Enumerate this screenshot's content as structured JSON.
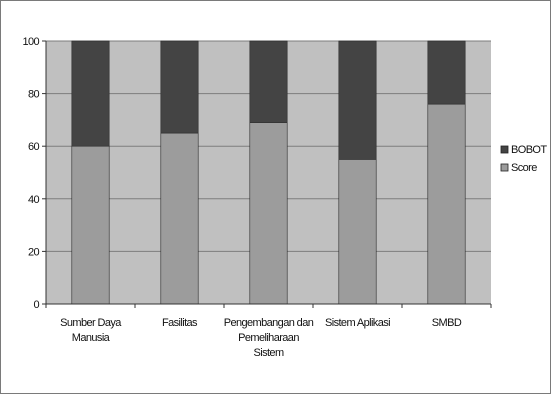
{
  "chart_data": {
    "type": "bar",
    "stacked": true,
    "categories": [
      [
        "Sumber Daya",
        "Manusia"
      ],
      [
        "Fasilitas"
      ],
      [
        "Pengembangan dan",
        "Pemeliharaan",
        "Sistem"
      ],
      [
        "Sistem Aplikasi"
      ],
      [
        "SMBD"
      ]
    ],
    "series": [
      {
        "name": "Score",
        "values": [
          60,
          65,
          69,
          55,
          76
        ],
        "color": "#9c9c9c"
      },
      {
        "name": "BOBOT",
        "values": [
          40,
          35,
          31,
          45,
          24
        ],
        "color": "#444444"
      }
    ],
    "ylim": [
      0,
      100
    ],
    "yticks": [
      "0",
      "20",
      "40",
      "60",
      "80",
      "100"
    ],
    "grid": true,
    "plot_background": "#c0c0c0",
    "legend_position": "right",
    "legend_order": [
      "BOBOT",
      "Score"
    ]
  }
}
